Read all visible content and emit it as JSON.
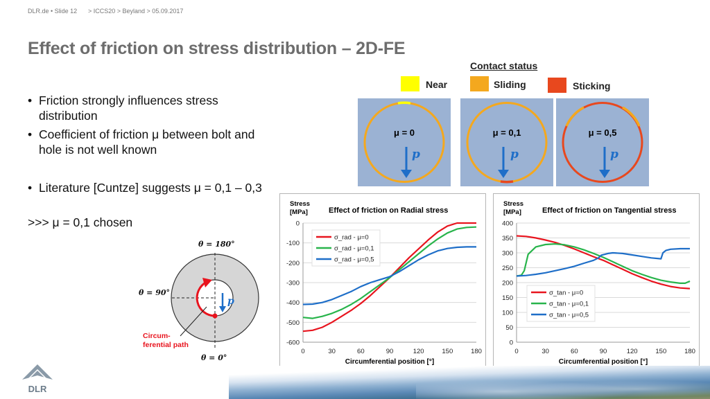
{
  "header": {
    "left": "DLR.de  •  Slide 12",
    "right": "> ICCS20 > Beyland > 05.09.2017"
  },
  "title": "Effect of friction on stress distribution – 2D-FE",
  "bullets": [
    "Friction strongly influences stress distribution",
    "Coefficient of friction μ between bolt and hole is not well known",
    "Literature [Cuntze] suggests μ = 0,1 – 0,3"
  ],
  "conclusion": ">>> μ = 0,1 chosen",
  "contact_legend": {
    "title": "Contact status",
    "items": [
      {
        "label": "Near",
        "color": "#ffff00"
      },
      {
        "label": "Sliding",
        "color": "#f4a81e"
      },
      {
        "label": "Sticking",
        "color": "#e8481e"
      }
    ]
  },
  "panels": [
    {
      "mu": "μ = 0",
      "p": "p"
    },
    {
      "mu": "μ = 0,1",
      "p": "p"
    },
    {
      "mu": "μ = 0,5",
      "p": "p"
    }
  ],
  "diagram": {
    "theta_180": "θ = 180°",
    "theta_90": "θ = 90°",
    "theta_0": "θ = 0°",
    "p": "p",
    "path_label_1": "Circum-",
    "path_label_2": "ferential path"
  },
  "colors": {
    "red": "#e8141e",
    "green": "#28b44b",
    "blue": "#1e6ec8",
    "near": "#ffff00",
    "sliding": "#f4a81e",
    "sticking": "#e8481e"
  },
  "chart_data": [
    {
      "type": "line",
      "title": "Effect of friction on Radial stress",
      "ylabel": "Stress\n[MPa]",
      "xlabel": "Circumferential position [°]",
      "xlim": [
        0,
        180
      ],
      "ylim": [
        -600,
        0
      ],
      "xticks": [
        0,
        30,
        60,
        90,
        120,
        150,
        180
      ],
      "yticks": [
        0,
        -100,
        -200,
        -300,
        -400,
        -500,
        -600
      ],
      "legend": "top-left",
      "series": [
        {
          "name": "σ_rad - μ=0",
          "color": "#e8141e",
          "x": [
            0,
            10,
            20,
            30,
            40,
            50,
            60,
            70,
            80,
            90,
            100,
            110,
            120,
            130,
            140,
            150,
            160,
            170,
            180
          ],
          "y": [
            -545,
            -540,
            -525,
            -500,
            -470,
            -440,
            -405,
            -365,
            -320,
            -275,
            -225,
            -175,
            -130,
            -85,
            -45,
            -15,
            0,
            0,
            0
          ]
        },
        {
          "name": "σ_rad - μ=0,1",
          "color": "#28b44b",
          "x": [
            0,
            10,
            20,
            30,
            40,
            50,
            60,
            70,
            80,
            90,
            100,
            110,
            120,
            130,
            140,
            150,
            160,
            170,
            180
          ],
          "y": [
            -475,
            -480,
            -470,
            -455,
            -435,
            -410,
            -380,
            -345,
            -310,
            -275,
            -235,
            -195,
            -155,
            -115,
            -80,
            -50,
            -30,
            -22,
            -20
          ]
        },
        {
          "name": "σ_rad - μ=0,5",
          "color": "#1e6ec8",
          "x": [
            0,
            10,
            20,
            30,
            40,
            50,
            60,
            70,
            80,
            90,
            100,
            110,
            120,
            130,
            140,
            150,
            160,
            170,
            180
          ],
          "y": [
            -410,
            -408,
            -400,
            -385,
            -365,
            -345,
            -320,
            -300,
            -285,
            -270,
            -245,
            -215,
            -185,
            -160,
            -140,
            -128,
            -122,
            -120,
            -120
          ]
        }
      ]
    },
    {
      "type": "line",
      "title": "Effect of friction on Tangential stress",
      "ylabel": "Stress\n[MPa]",
      "xlabel": "Circumferential position [°]",
      "xlim": [
        0,
        180
      ],
      "ylim": [
        0,
        400
      ],
      "xticks": [
        0,
        30,
        60,
        90,
        120,
        150,
        180
      ],
      "yticks": [
        0,
        50,
        100,
        150,
        200,
        250,
        300,
        350,
        400
      ],
      "legend": "bottom-left",
      "series": [
        {
          "name": "σ_tan - μ=0",
          "color": "#e8141e",
          "x": [
            0,
            10,
            20,
            30,
            40,
            50,
            60,
            70,
            80,
            90,
            100,
            110,
            120,
            130,
            140,
            150,
            160,
            170,
            180
          ],
          "y": [
            357,
            355,
            350,
            343,
            335,
            325,
            313,
            300,
            287,
            275,
            260,
            245,
            230,
            217,
            205,
            195,
            187,
            182,
            180
          ]
        },
        {
          "name": "σ_tan - μ=0,1",
          "color": "#28b44b",
          "x": [
            0,
            5,
            8,
            12,
            20,
            30,
            40,
            50,
            60,
            70,
            80,
            90,
            100,
            110,
            120,
            130,
            140,
            150,
            160,
            170,
            175,
            180
          ],
          "y": [
            222,
            225,
            240,
            295,
            320,
            328,
            330,
            327,
            320,
            310,
            298,
            285,
            270,
            255,
            240,
            228,
            217,
            208,
            202,
            198,
            198,
            205
          ]
        },
        {
          "name": "σ_tan - μ=0,5",
          "color": "#1e6ec8",
          "x": [
            0,
            10,
            20,
            30,
            40,
            50,
            60,
            70,
            80,
            85,
            88,
            95,
            100,
            110,
            120,
            130,
            140,
            150,
            152,
            155,
            160,
            170,
            180
          ],
          "y": [
            222,
            224,
            228,
            233,
            240,
            247,
            255,
            265,
            275,
            283,
            292,
            298,
            300,
            298,
            293,
            288,
            283,
            280,
            300,
            308,
            312,
            314,
            314
          ]
        }
      ]
    }
  ]
}
